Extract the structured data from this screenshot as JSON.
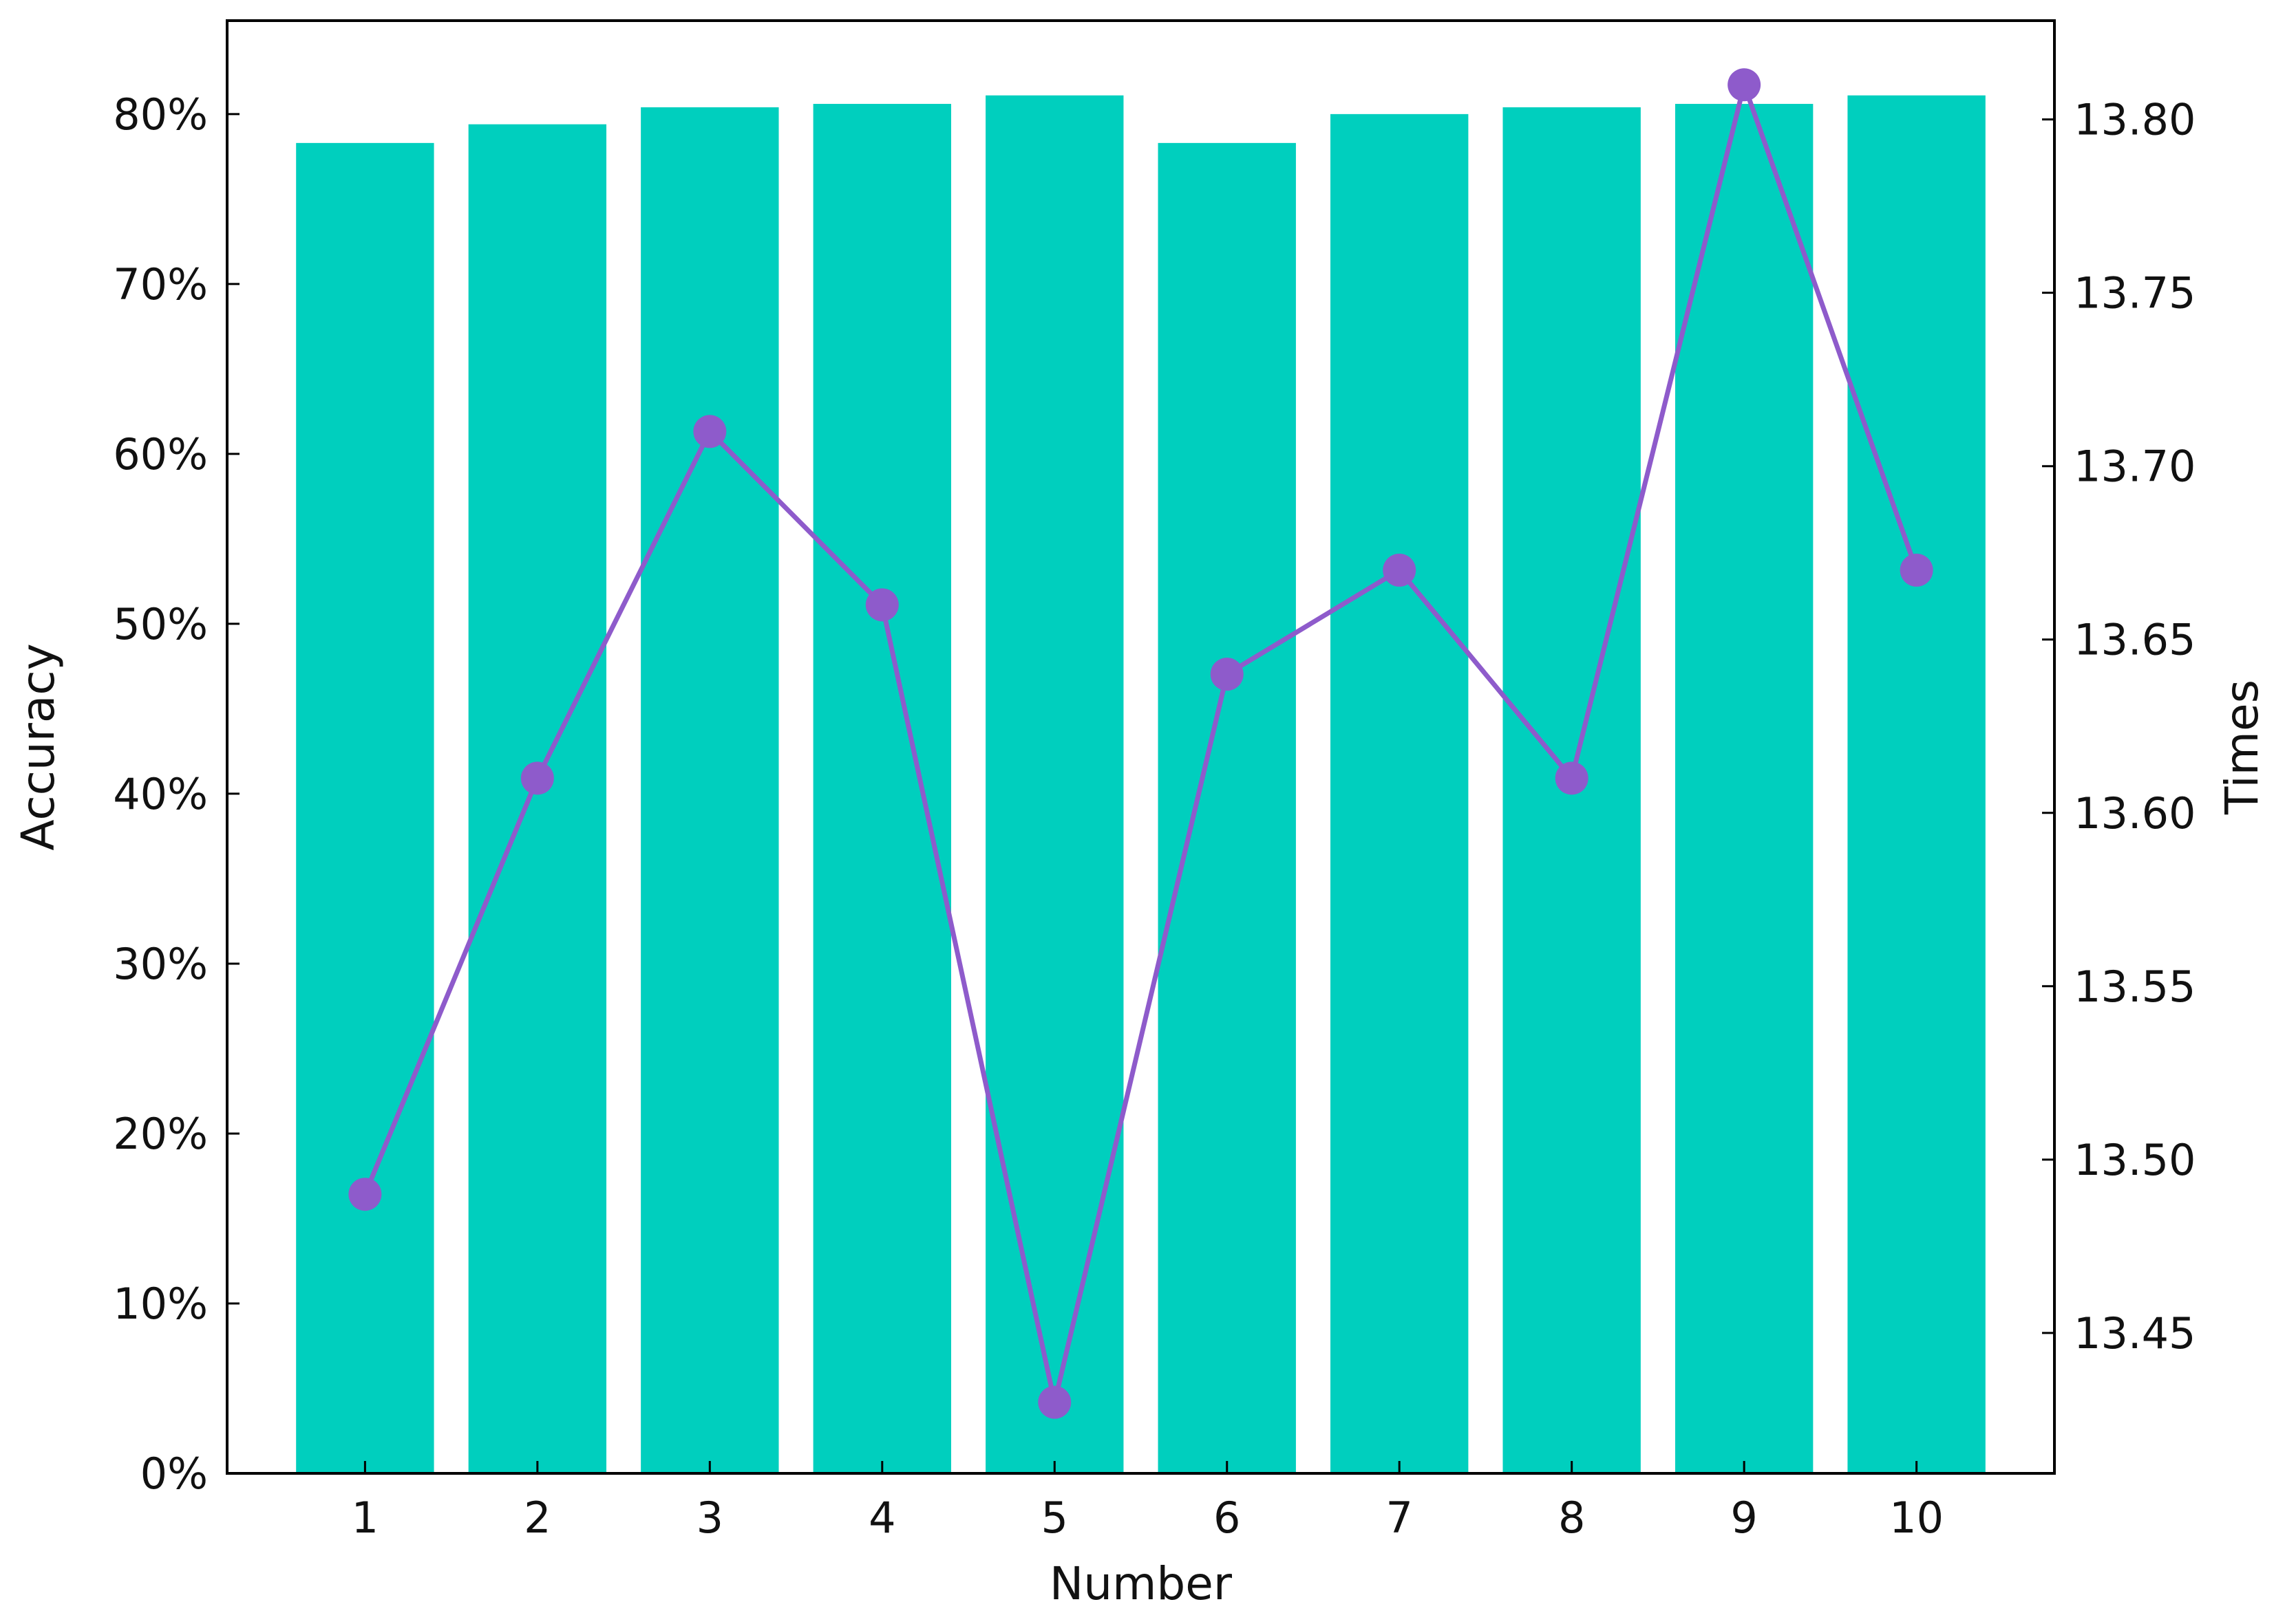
{
  "chart_data": {
    "type": "bar",
    "xlabel": "Number",
    "ylabel": "Accuracy",
    "ylabel_right": "Times",
    "categories": [
      "1",
      "2",
      "3",
      "4",
      "5",
      "6",
      "7",
      "8",
      "9",
      "10"
    ],
    "series": [
      {
        "type": "bar",
        "axis": "left",
        "color": "#00CFBE",
        "values": [
          0.783,
          0.794,
          0.804,
          0.806,
          0.811,
          0.783,
          0.8,
          0.804,
          0.806,
          0.811
        ]
      },
      {
        "type": "line",
        "axis": "right",
        "color": "#8E5BCB",
        "marker": "circle",
        "values": [
          13.49,
          13.61,
          13.71,
          13.66,
          13.43,
          13.64,
          13.67,
          13.61,
          13.81,
          13.67
        ]
      }
    ],
    "ylim": [
      0,
      0.855
    ],
    "y2lim": [
      13.4095,
      13.8285
    ],
    "yticks": [
      "0%",
      "10%",
      "20%",
      "30%",
      "40%",
      "50%",
      "60%",
      "70%",
      "80%"
    ],
    "y2ticks": [
      "13.45",
      "13.50",
      "13.55",
      "13.60",
      "13.65",
      "13.70",
      "13.75",
      "13.80"
    ],
    "grid": false,
    "legend": "none"
  }
}
